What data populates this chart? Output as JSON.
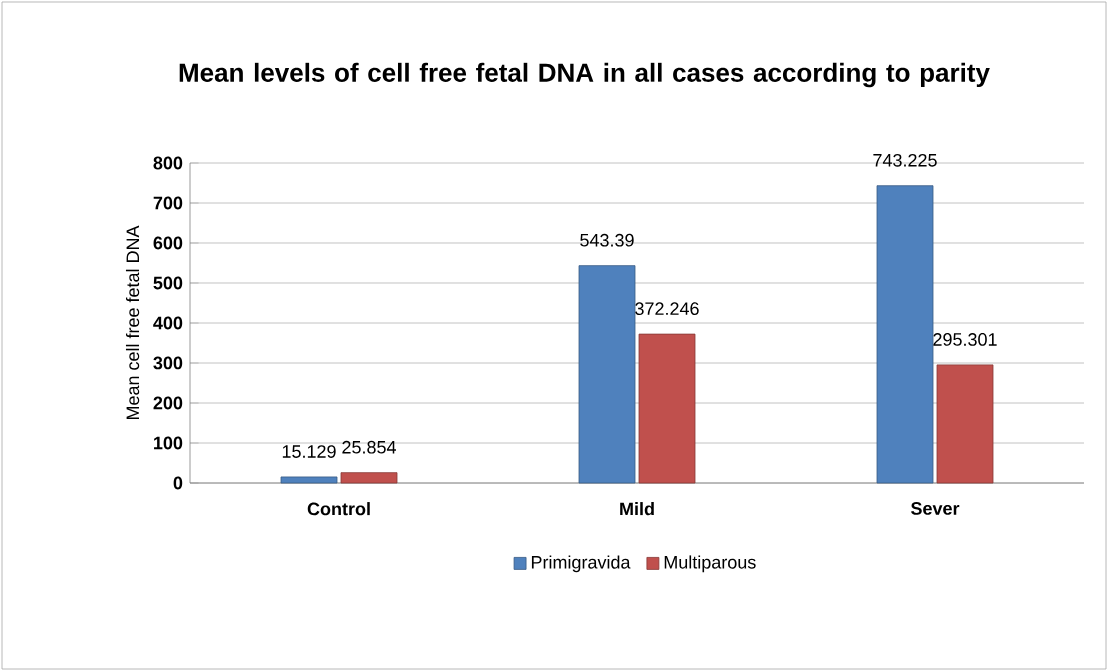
{
  "chart_data": {
    "type": "bar",
    "title": "Mean levels of cell free fetal DNA in all cases according to parity",
    "ylabel": "Mean cell free fetal DNA",
    "categories": [
      "Control",
      "Mild",
      "Sever"
    ],
    "series": [
      {
        "name": "Primigravida",
        "color": "#4f81bd",
        "values": [
          15.129,
          543.39,
          743.225
        ]
      },
      {
        "name": "Multiparous",
        "color": "#c0504d",
        "values": [
          25.854,
          372.246,
          295.301
        ]
      }
    ],
    "ylim": [
      0,
      800
    ],
    "yticks": [
      0,
      100,
      200,
      300,
      400,
      500,
      600,
      700,
      800
    ],
    "grid": "y",
    "legend": "bottom",
    "data_labels": true
  }
}
